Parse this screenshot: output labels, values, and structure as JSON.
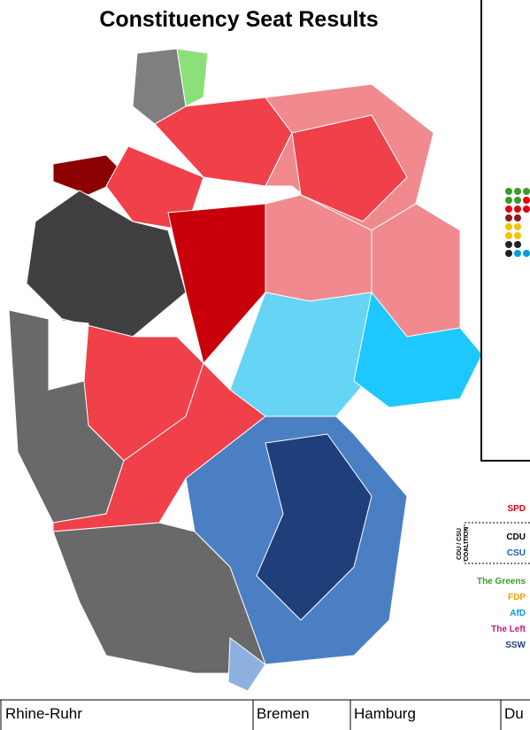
{
  "title": "Constituency Seat Results",
  "legend": {
    "parties": [
      "SPD",
      "CDU",
      "CSU",
      "The Greens",
      "FDP",
      "AfD",
      "The Left",
      "SSW"
    ],
    "coalition": [
      "CDU / CSU",
      "COALITION"
    ]
  },
  "table": {
    "headers": [
      "Rhine-Ruhr",
      "Bremen",
      "Hamburg",
      "Du"
    ]
  }
}
